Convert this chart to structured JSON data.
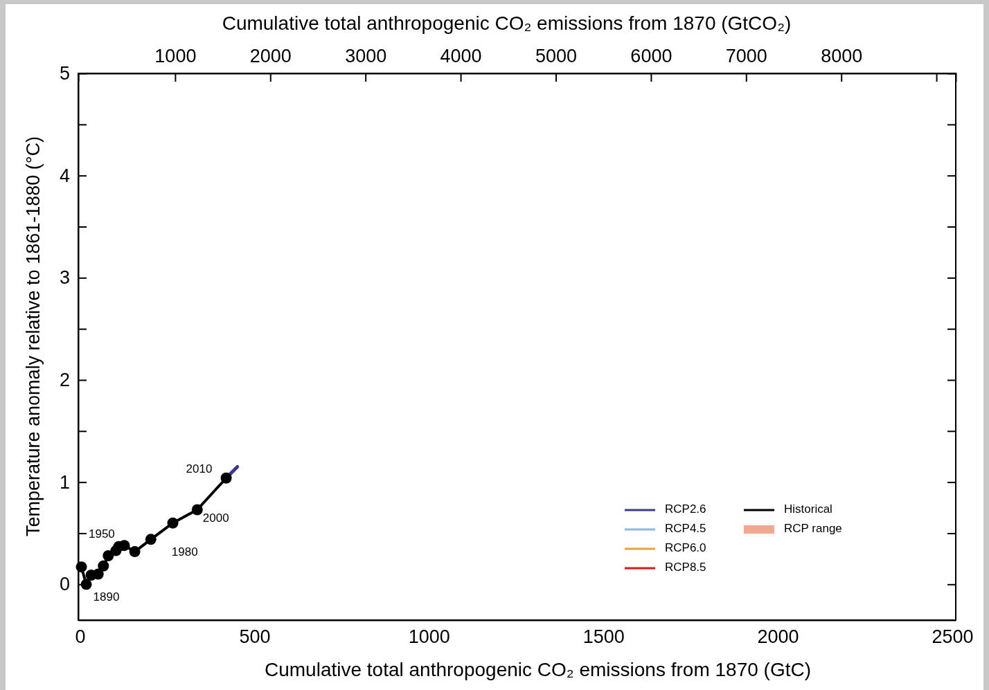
{
  "chart_data": {
    "type": "line",
    "xlabel": "Cumulative total anthropogenic CO₂ emissions from 1870 (GtC)",
    "x2label": "Cumulative total anthropogenic CO₂ emissions from 1870 (GtCO₂)",
    "ylabel": "Temperature anomaly relative to 1861-1880 (°C)",
    "xlim": [
      -5,
      2510
    ],
    "xticks": [
      0,
      500,
      1000,
      1500,
      2000,
      2500
    ],
    "x2lim": [
      -18,
      9203
    ],
    "x2ticks": [
      1000,
      2000,
      3000,
      4000,
      5000,
      6000,
      7000,
      8000,
      {
        "value": 9000,
        "label": null
      }
    ],
    "ylim": [
      -0.35,
      5
    ],
    "yticks": [
      0,
      {
        "value": 0.5,
        "label": null
      },
      1,
      {
        "value": 1.5,
        "label": null
      },
      2,
      {
        "value": 2.5,
        "label": null
      },
      3,
      {
        "value": 3.5,
        "label": null
      },
      4,
      {
        "value": 4.5,
        "label": null
      },
      5
    ],
    "grid": false,
    "legend": "bottom right",
    "marker": "none",
    "line_style": "solid",
    "series": [
      {
        "name": "RCP2.6",
        "color": "#3b3a8f",
        "x": [
          419,
          451
        ],
        "values": [
          1.04,
          1.15
        ]
      },
      {
        "name": "RCP4.5",
        "color": "#8db4e2"
      },
      {
        "name": "RCP6.0",
        "color": "#e8a33d"
      },
      {
        "name": "RCP8.5",
        "color": "#d7191c"
      },
      {
        "name": "Historical",
        "color": "#000000",
        "marker": "circle",
        "x": [
          4,
          18,
          32,
          52,
          67,
          81,
          103,
          111,
          127,
          157,
          203,
          266,
          336,
          419
        ],
        "values": [
          0.17,
          0.0,
          0.09,
          0.1,
          0.18,
          0.28,
          0.33,
          0.37,
          0.38,
          0.32,
          0.44,
          0.6,
          0.73,
          1.04
        ]
      },
      {
        "name": "RCP range",
        "type": "area",
        "color": "#f0a890"
      }
    ],
    "annotations": [
      {
        "text": "1890",
        "x": 18,
        "y": 0.0
      },
      "1950",
      {
        "text": "1980",
        "x": 203,
        "y": 0.44
      },
      {
        "text": "2000",
        "x": 336,
        "y": 0.73
      },
      {
        "text": "2010",
        "x": 419,
        "y": 1.04
      }
    ]
  }
}
